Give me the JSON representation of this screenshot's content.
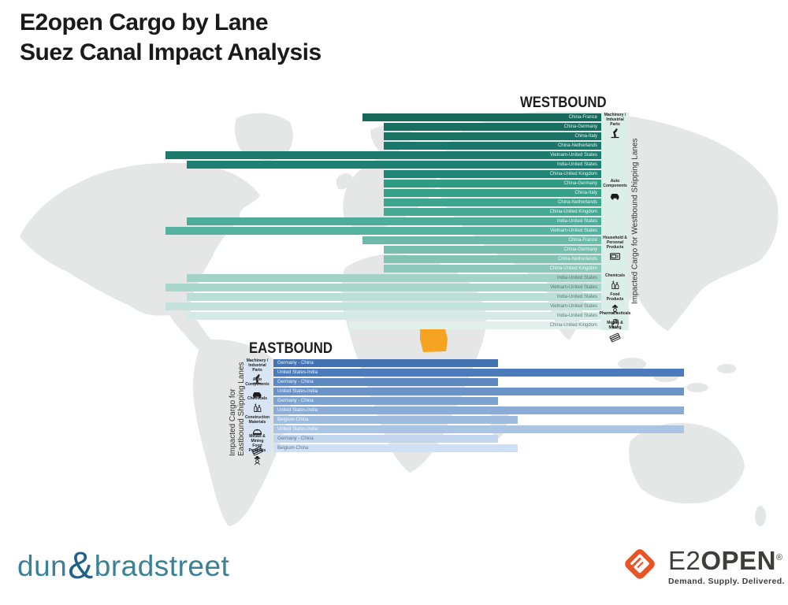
{
  "page_title": {
    "line1": "E2open Cargo by Lane",
    "line2": "Suez Canal Impact Analysis"
  },
  "colors": {
    "title_text": "#1a1a1a",
    "map_gray": "#e5e6e6",
    "egypt_highlight": "#f5a321",
    "westbound_strip_bg": "#dceee8",
    "eastbound_strip_bg": "#d8e5f5",
    "dnb_teal": "#3a8096",
    "dnb_ampersand": "#20618a",
    "e2open_orange": "#e85425",
    "e2open_text": "#3d3d3c"
  },
  "map": {
    "highlight_region": "Egypt",
    "highlight_color": "#f5a321"
  },
  "chart_data": [
    {
      "type": "bar",
      "id": "westbound",
      "title": "WESTBOUND",
      "axis_label": "Impacted Cargo for Westbound Shipping Lanes",
      "bar_alignment": "right",
      "value_note": "no numeric axis shown; value = approximate bar length in source pixels (relative impacted cargo volume)",
      "groups": [
        {
          "category": "Machinery / Industrial Parts",
          "icon": "industrial-robot-icon",
          "lanes": [
            {
              "label": "China-France",
              "value": 303,
              "color": "#17695B"
            },
            {
              "label": "China-Germany",
              "value": 276,
              "color": "#186E60"
            },
            {
              "label": "China-Italy",
              "value": 276,
              "color": "#1A7264"
            },
            {
              "label": "China-Netherlands",
              "value": 276,
              "color": "#1B7769"
            },
            {
              "label": "Vietnam-United States",
              "value": 553,
              "color": "#1D7B6D"
            },
            {
              "label": "India-United States",
              "value": 526,
              "color": "#1E8072"
            },
            {
              "label": "China-United Kingdom",
              "value": 276,
              "color": "#208476"
            }
          ]
        },
        {
          "category": "Auto Components",
          "icon": "car-icon",
          "lanes": [
            {
              "label": "China-Germany",
              "value": 276,
              "color": "#2E9C82"
            },
            {
              "label": "China-Italy",
              "value": 276,
              "color": "#36A088"
            },
            {
              "label": "China-Netherlands",
              "value": 276,
              "color": "#3EA58E"
            },
            {
              "label": "China-United Kingdom",
              "value": 276,
              "color": "#46A994"
            },
            {
              "label": "India-United States",
              "value": 526,
              "color": "#4EAD9A"
            },
            {
              "label": "Vietnam-United States",
              "value": 553,
              "color": "#56B2A0"
            }
          ]
        },
        {
          "category": "Household & Personal Products",
          "icon": "microwave-icon",
          "lanes": [
            {
              "label": "China-France",
              "value": 303,
              "color": "#6CBBA9"
            },
            {
              "label": "China-Germany",
              "value": 276,
              "color": "#77C0AF"
            },
            {
              "label": "China-Netherlands",
              "value": 276,
              "color": "#82C4B4"
            },
            {
              "label": "China-United Kingdom",
              "value": 276,
              "color": "#8DC9BA"
            }
          ]
        },
        {
          "category": "Chemicals",
          "icon": "bottles-icon",
          "lanes": [
            {
              "label": "India-United States",
              "value": 526,
              "color": "#A1D3C6"
            },
            {
              "label": "Vietnam-United States",
              "value": 553,
              "color": "#AAD7CB"
            }
          ]
        },
        {
          "category": "Food Products",
          "icon": "chef-icon",
          "lanes": [
            {
              "label": "India-United States",
              "value": 526,
              "color": "#BADFD5"
            },
            {
              "label": "Vietnam-United States",
              "value": 553,
              "color": "#C3E3DA"
            }
          ]
        },
        {
          "category": "Pharmaceuticals",
          "icon": "pharmaceuticals-icon",
          "lanes": [
            {
              "label": "India-United States",
              "value": 526,
              "color": "#D3EBE4"
            }
          ]
        },
        {
          "category": "Metals & Mining",
          "icon": "pipes-icon",
          "lanes": [
            {
              "label": "China-United Kingdom",
              "value": 320,
              "color": "#E0F1EB"
            }
          ]
        }
      ]
    },
    {
      "type": "bar",
      "id": "eastbound",
      "title": "EASTBOUND",
      "axis_label": "Impacted Cargo for Eastbound Shipping Lanes",
      "bar_alignment": "left",
      "value_note": "no numeric axis shown; value = approximate bar length in source pixels (relative impacted cargo volume)",
      "groups": [
        {
          "category": "Machinery / Industrial Parts",
          "icon": "industrial-robot-icon",
          "lanes": [
            {
              "label": "Germany - China",
              "value": 285,
              "color": "#4473B4"
            },
            {
              "label": "United States-India",
              "value": 521,
              "color": "#4C7BBC"
            }
          ]
        },
        {
          "category": "Auto Components",
          "icon": "car-icon",
          "lanes": [
            {
              "label": "Germany - China",
              "value": 285,
              "color": "#5D88C2"
            },
            {
              "label": "United States-India",
              "value": 521,
              "color": "#6A93C8"
            }
          ]
        },
        {
          "category": "Chemicals",
          "icon": "bottles-icon",
          "lanes": [
            {
              "label": "Germany - China",
              "value": 285,
              "color": "#7DA3D0"
            },
            {
              "label": "United States-India",
              "value": 521,
              "color": "#8AACD6"
            }
          ]
        },
        {
          "category": "Construction Materials",
          "icon": "hardhat-icon",
          "lanes": [
            {
              "label": "Belgium-China",
              "value": 310,
              "color": "#9DBCDE"
            },
            {
              "label": "United States-India",
              "value": 521,
              "color": "#AAC5E4"
            }
          ]
        },
        {
          "category": "Metals & Mining",
          "icon": "pipes-icon",
          "lanes": [
            {
              "label": "Germany - China",
              "value": 285,
              "color": "#C2D6EE"
            }
          ]
        },
        {
          "category": "Food Products",
          "icon": "chef-icon",
          "lanes": [
            {
              "label": "Belgium-China",
              "value": 310,
              "color": "#CFE0F4"
            }
          ]
        }
      ]
    }
  ],
  "footer": {
    "dnb_logo": {
      "part1": "dun",
      "amp": "&",
      "part2": "bradstreet"
    },
    "e2open_logo": {
      "name_light": "E2",
      "name_bold": "OPEN",
      "reg": "®",
      "tagline": "Demand. Supply. Delivered."
    }
  }
}
